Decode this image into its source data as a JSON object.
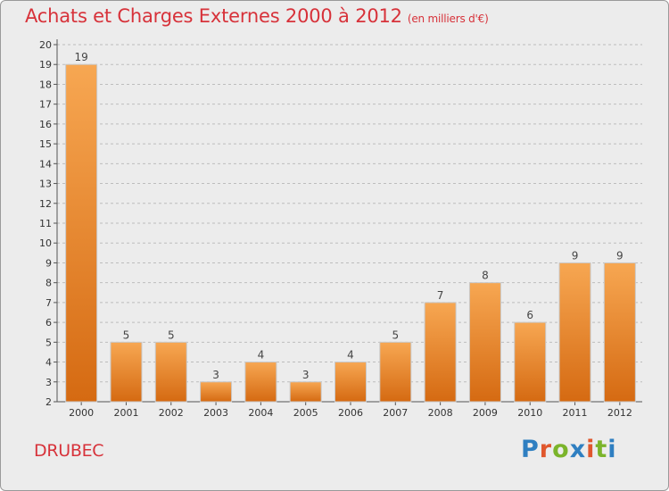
{
  "header": {
    "title": "Achats et Charges Externes 2000 à 2012",
    "unit": "(en milliers d'€)"
  },
  "footer": {
    "commune": "DRUBEC",
    "logo_letters": [
      "P",
      "r",
      "o",
      "x",
      "i",
      "t",
      "i"
    ],
    "logo_colors": [
      "#2f7fc1",
      "#e0572d",
      "#7bb42b",
      "#2f7fc1",
      "#e0572d",
      "#7bb42b",
      "#2f7fc1"
    ]
  },
  "colors": {
    "bar_light": "#f7a752",
    "bar_dark": "#d56a12",
    "title": "#d7323a",
    "grid": "#bdbdbd"
  },
  "chart_data": {
    "type": "bar",
    "title": "Achats et Charges Externes 2000 à 2012",
    "subtitle": "(en milliers d'€)",
    "xlabel": "",
    "ylabel": "",
    "categories": [
      "2000",
      "2001",
      "2002",
      "2003",
      "2004",
      "2005",
      "2006",
      "2007",
      "2008",
      "2009",
      "2010",
      "2011",
      "2012"
    ],
    "values": [
      19,
      5,
      5,
      3,
      4,
      3,
      4,
      5,
      7,
      8,
      6,
      9,
      9
    ],
    "ylim": [
      2,
      20
    ],
    "yticks": [
      2,
      3,
      4,
      5,
      6,
      7,
      8,
      9,
      10,
      11,
      12,
      13,
      14,
      15,
      16,
      17,
      18,
      19,
      20
    ],
    "grid": "horizontal dashed",
    "legend": "none"
  }
}
